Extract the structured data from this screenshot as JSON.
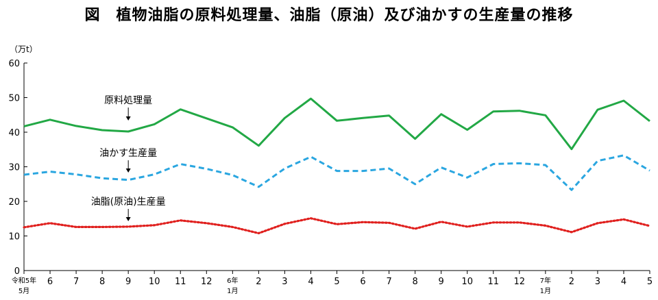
{
  "title": "図　植物油脂の原料処理量、油脂（原油）及び油かすの生産量の推移",
  "chart_data": {
    "type": "line",
    "unit_label": "（万t）",
    "ylim": [
      0,
      60
    ],
    "yticks": [
      0,
      10,
      20,
      30,
      40,
      50,
      60
    ],
    "grid": false,
    "categories": [
      "令和5年\n5月",
      "6",
      "7",
      "8",
      "9",
      "10",
      "11",
      "12",
      "6年\n1月",
      "2",
      "3",
      "4",
      "5",
      "6",
      "7",
      "8",
      "9",
      "10",
      "11",
      "12",
      "7年\n1月",
      "2",
      "3",
      "4",
      "5"
    ],
    "series": [
      {
        "name": "原料処理量",
        "color": "#22a845",
        "style": "solid",
        "values": [
          41.7,
          43.6,
          41.8,
          40.6,
          40.2,
          42.3,
          46.6,
          44.0,
          41.4,
          36.1,
          44.1,
          49.7,
          43.3,
          44.1,
          44.8,
          38.1,
          45.2,
          40.7,
          46.0,
          46.2,
          44.9,
          35.1,
          46.5,
          49.1,
          43.2
        ]
      },
      {
        "name": "油かす生産量",
        "color": "#2aa6e0",
        "style": "dashed",
        "values": [
          27.7,
          28.6,
          27.8,
          26.7,
          26.2,
          27.8,
          30.8,
          29.4,
          27.6,
          24.2,
          29.5,
          32.9,
          28.8,
          28.8,
          29.5,
          25.0,
          29.8,
          26.9,
          30.8,
          31.0,
          30.5,
          23.3,
          31.7,
          33.3,
          28.9
        ]
      },
      {
        "name": "油脂(原油)生産量",
        "color": "#e0201e",
        "style": "dotted",
        "values": [
          12.5,
          13.7,
          12.6,
          12.6,
          12.7,
          13.1,
          14.5,
          13.7,
          12.6,
          10.8,
          13.5,
          15.1,
          13.4,
          14.0,
          13.8,
          12.1,
          14.1,
          12.7,
          13.9,
          13.9,
          13.0,
          11.1,
          13.7,
          14.8,
          12.9
        ]
      }
    ]
  }
}
